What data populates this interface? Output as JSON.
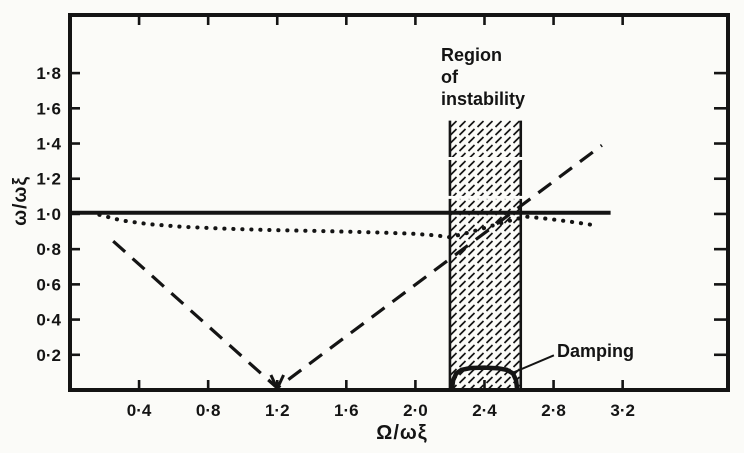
{
  "colors": {
    "ink": "#141414",
    "paper": "#fbfbf8"
  },
  "chart_data": {
    "type": "line",
    "title": "",
    "xlabel": "Ω/ωξ",
    "ylabel": "ω/ωξ",
    "xlim": [
      0,
      3.81
    ],
    "ylim": [
      0,
      2.13
    ],
    "grid": false,
    "legend": "none",
    "x_ticks": [
      {
        "v": 0.4,
        "label": "0·4"
      },
      {
        "v": 0.8,
        "label": "0·8"
      },
      {
        "v": 1.2,
        "label": "1·2"
      },
      {
        "v": 1.6,
        "label": "1·6"
      },
      {
        "v": 2.0,
        "label": "2·0"
      },
      {
        "v": 2.4,
        "label": "2·4"
      },
      {
        "v": 2.8,
        "label": "2·8"
      },
      {
        "v": 3.2,
        "label": "3·2"
      }
    ],
    "y_ticks": [
      {
        "v": 0.2,
        "label": "0·2"
      },
      {
        "v": 0.4,
        "label": "0·4"
      },
      {
        "v": 0.6,
        "label": "0·6"
      },
      {
        "v": 0.8,
        "label": "0·8"
      },
      {
        "v": 1.0,
        "label": "1·0"
      },
      {
        "v": 1.2,
        "label": "1·2"
      },
      {
        "v": 1.4,
        "label": "1·4"
      },
      {
        "v": 1.6,
        "label": "1·6"
      },
      {
        "v": 1.8,
        "label": "1·8"
      }
    ],
    "instability_band": {
      "x0": 2.2,
      "x1": 2.61,
      "y0": 0,
      "y1": 1.53
    },
    "series": [
      {
        "name": "solid-unity-line",
        "style": "solid",
        "width": 4,
        "points": [
          [
            0,
            1.007
          ],
          [
            3.13,
            1.007
          ]
        ]
      },
      {
        "name": "dotted-frequency-curve",
        "style": "dotted",
        "width": 4,
        "points": [
          [
            0.17,
            0.995
          ],
          [
            0.3,
            0.963
          ],
          [
            0.46,
            0.942
          ],
          [
            0.65,
            0.927
          ],
          [
            0.9,
            0.916
          ],
          [
            1.15,
            0.909
          ],
          [
            1.45,
            0.903
          ],
          [
            1.75,
            0.896
          ],
          [
            1.98,
            0.888
          ],
          [
            2.12,
            0.878
          ],
          [
            2.2,
            0.868
          ],
          [
            2.32,
            0.897
          ],
          [
            2.45,
            0.935
          ],
          [
            2.57,
            0.968
          ],
          [
            2.64,
            0.985
          ],
          [
            2.76,
            0.973
          ],
          [
            2.88,
            0.958
          ],
          [
            3.0,
            0.942
          ],
          [
            3.06,
            0.931
          ]
        ]
      },
      {
        "name": "dashed-speed-line",
        "style": "dashed",
        "width": 3.2,
        "points": [
          [
            0.25,
            0.845
          ],
          [
            1.2,
            0.012
          ],
          [
            3.08,
            1.39
          ]
        ]
      },
      {
        "name": "damping-curve",
        "style": "solid",
        "width": 4.5,
        "points": [
          [
            2.212,
            0.004
          ],
          [
            2.218,
            0.055
          ],
          [
            2.236,
            0.094
          ],
          [
            2.268,
            0.115
          ],
          [
            2.32,
            0.125
          ],
          [
            2.4,
            0.127
          ],
          [
            2.475,
            0.124
          ],
          [
            2.53,
            0.114
          ],
          [
            2.565,
            0.094
          ],
          [
            2.583,
            0.055
          ],
          [
            2.589,
            0.004
          ]
        ]
      }
    ],
    "v_vertex_arrow": [
      [
        1.163,
        0.085
      ],
      [
        1.2,
        0.008
      ],
      [
        1.237,
        0.085
      ]
    ],
    "annotations": {
      "region": {
        "lines": [
          "Region",
          "of",
          "instability"
        ]
      },
      "damping": {
        "text": "Damping",
        "leader": [
          [
            2.552,
            0.093
          ],
          [
            2.802,
            0.197
          ]
        ]
      }
    }
  }
}
